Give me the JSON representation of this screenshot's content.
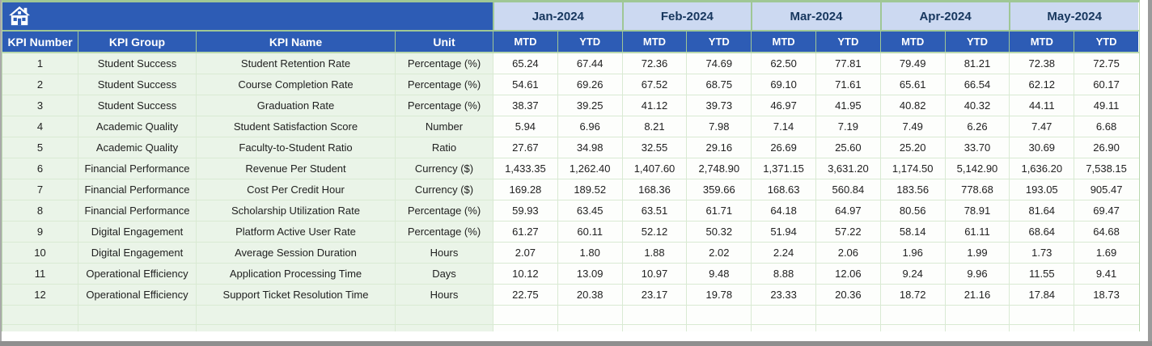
{
  "table": {
    "columns": [
      "KPI Number",
      "KPI Group",
      "KPI Name",
      "Unit"
    ],
    "months": [
      "Jan-2024",
      "Feb-2024",
      "Mar-2024",
      "Apr-2024",
      "May-2024"
    ],
    "subheaders": [
      "MTD",
      "YTD"
    ],
    "rows": [
      {
        "number": "1",
        "group": "Student Success",
        "name": "Student Retention Rate",
        "unit": "Percentage (%)",
        "values": [
          "65.24",
          "67.44",
          "72.36",
          "74.69",
          "62.50",
          "77.81",
          "79.49",
          "81.21",
          "72.38",
          "72.75"
        ]
      },
      {
        "number": "2",
        "group": "Student Success",
        "name": "Course Completion Rate",
        "unit": "Percentage (%)",
        "values": [
          "54.61",
          "69.26",
          "67.52",
          "68.75",
          "69.10",
          "71.61",
          "65.61",
          "66.54",
          "62.12",
          "60.17"
        ]
      },
      {
        "number": "3",
        "group": "Student Success",
        "name": "Graduation Rate",
        "unit": "Percentage (%)",
        "values": [
          "38.37",
          "39.25",
          "41.12",
          "39.73",
          "46.97",
          "41.95",
          "40.82",
          "40.32",
          "44.11",
          "49.11"
        ]
      },
      {
        "number": "4",
        "group": "Academic Quality",
        "name": "Student Satisfaction Score",
        "unit": "Number",
        "values": [
          "5.94",
          "6.96",
          "8.21",
          "7.98",
          "7.14",
          "7.19",
          "7.49",
          "6.26",
          "7.47",
          "6.68"
        ]
      },
      {
        "number": "5",
        "group": "Academic Quality",
        "name": "Faculty-to-Student Ratio",
        "unit": "Ratio",
        "values": [
          "27.67",
          "34.98",
          "32.55",
          "29.16",
          "26.69",
          "25.60",
          "25.20",
          "33.70",
          "30.69",
          "26.90"
        ]
      },
      {
        "number": "6",
        "group": "Financial Performance",
        "name": "Revenue Per Student",
        "unit": "Currency ($)",
        "values": [
          "1,433.35",
          "1,262.40",
          "1,407.60",
          "2,748.90",
          "1,371.15",
          "3,631.20",
          "1,174.50",
          "5,142.90",
          "1,636.20",
          "7,538.15"
        ]
      },
      {
        "number": "7",
        "group": "Financial Performance",
        "name": "Cost Per Credit Hour",
        "unit": "Currency ($)",
        "values": [
          "169.28",
          "189.52",
          "168.36",
          "359.66",
          "168.63",
          "560.84",
          "183.56",
          "778.68",
          "193.05",
          "905.47"
        ]
      },
      {
        "number": "8",
        "group": "Financial Performance",
        "name": "Scholarship Utilization Rate",
        "unit": "Percentage (%)",
        "values": [
          "59.93",
          "63.45",
          "63.51",
          "61.71",
          "64.18",
          "64.97",
          "80.56",
          "78.91",
          "81.64",
          "69.47"
        ]
      },
      {
        "number": "9",
        "group": "Digital Engagement",
        "name": "Platform Active User Rate",
        "unit": "Percentage (%)",
        "values": [
          "61.27",
          "60.11",
          "52.12",
          "50.32",
          "51.94",
          "57.22",
          "58.14",
          "61.11",
          "68.64",
          "64.68"
        ]
      },
      {
        "number": "10",
        "group": "Digital Engagement",
        "name": "Average Session Duration",
        "unit": "Hours",
        "values": [
          "2.07",
          "1.80",
          "1.88",
          "2.02",
          "2.24",
          "2.06",
          "1.96",
          "1.99",
          "1.73",
          "1.69"
        ]
      },
      {
        "number": "11",
        "group": "Operational Efficiency",
        "name": "Application Processing Time",
        "unit": "Days",
        "values": [
          "10.12",
          "13.09",
          "10.97",
          "9.48",
          "8.88",
          "12.06",
          "9.24",
          "9.96",
          "11.55",
          "9.41"
        ]
      },
      {
        "number": "12",
        "group": "Operational Efficiency",
        "name": "Support Ticket Resolution Time",
        "unit": "Hours",
        "values": [
          "22.75",
          "20.38",
          "23.17",
          "19.78",
          "23.33",
          "20.36",
          "18.72",
          "21.16",
          "17.84",
          "18.73"
        ]
      }
    ],
    "empty_row_count": 2
  },
  "icons": {
    "home": "home-icon"
  },
  "colors": {
    "band_blue": "#2d5cb5",
    "month_band_blue": "#ccd9f1",
    "month_text_navy": "#17375e",
    "left_cell_green": "#eaf4e8",
    "grid_light_green": "#d9ead3",
    "grid_strong_green": "#9fc795",
    "edge_gray": "#8f8f8f"
  }
}
